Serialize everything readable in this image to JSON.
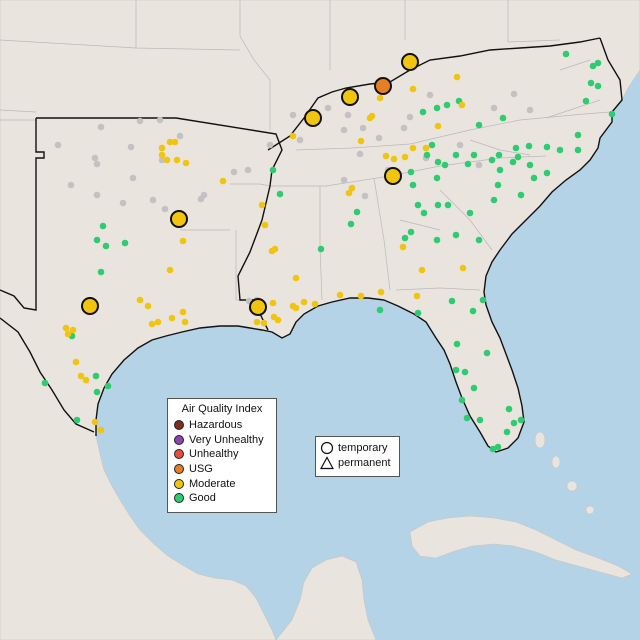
{
  "legend": {
    "title": "Air Quality Index",
    "items": [
      {
        "label": "Hazardous",
        "color": "#7e2d1f"
      },
      {
        "label": "Very Unhealthy",
        "color": "#8e44ad"
      },
      {
        "label": "Unhealthy",
        "color": "#e74c3c"
      },
      {
        "label": "USG",
        "color": "#e67e22"
      },
      {
        "label": "Moderate",
        "color": "#f1c40f"
      },
      {
        "label": "Good",
        "color": "#2ecc71"
      }
    ]
  },
  "shape_legend": {
    "items": [
      {
        "label": "temporary",
        "shape": "circle-icon"
      },
      {
        "label": "permanent",
        "shape": "triangle-icon"
      }
    ]
  },
  "colors": {
    "water": "#b4d3e7",
    "land": "#e9e4de",
    "unmonitored_sensor": "#c2c2c2",
    "good": "#2ecc71",
    "moderate": "#f1c40f",
    "usg": "#e67e22"
  }
}
